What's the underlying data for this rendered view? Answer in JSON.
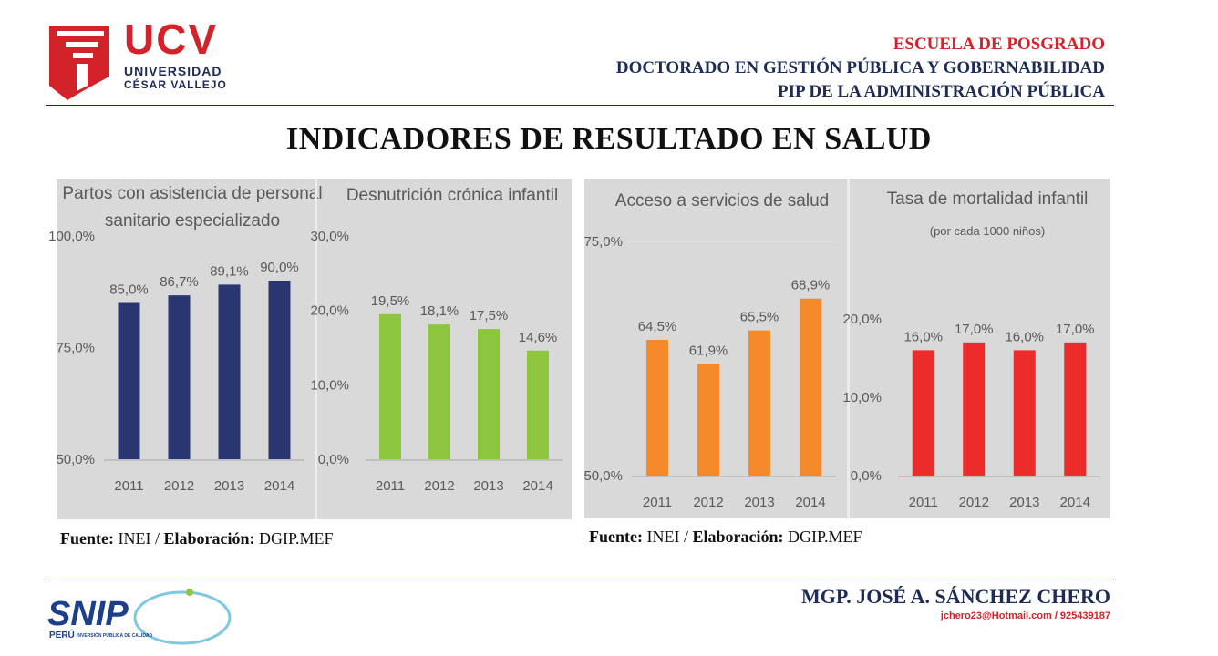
{
  "header": {
    "logo_main": "UCV",
    "logo_line1": "UNIVERSIDAD",
    "logo_line2": "CÉSAR VALLEJO",
    "line1": "ESCUELA DE POSGRADO",
    "line2": "DOCTORADO EN GESTIÓN PÚBLICA Y GOBERNABILIDAD",
    "line3": "PIP DE LA ADMINISTRACIÓN PÚBLICA"
  },
  "page_title": "INDICADORES DE RESULTADO EN SALUD",
  "sources": [
    {
      "label1": "Fuente:",
      "text1": " INEI / ",
      "label2": "Elaboración:",
      "text2": " DGIP.MEF"
    },
    {
      "label1": "Fuente:",
      "text1": " INEI / ",
      "label2": "Elaboración:",
      "text2": " DGIP.MEF"
    }
  ],
  "footer": {
    "author": "MGP. JOSÉ A. SÁNCHEZ CHERO",
    "contact": "jchero23@Hotmail.com / 925439187",
    "snip_logo": "SNIP",
    "snip_sub1": "PERÚ",
    "snip_sub2": "INVERSIÓN PÚBLICA DE CALIDAD"
  },
  "chart_data": [
    {
      "type": "bar",
      "title": [
        "Partos con asistencia de personal",
        "sanitario especializado"
      ],
      "categories": [
        "2011",
        "2012",
        "2013",
        "2014"
      ],
      "values": [
        85.0,
        86.7,
        89.1,
        90.0
      ],
      "value_labels": [
        "85,0%",
        "86,7%",
        "89,1%",
        "90,0%"
      ],
      "ylim": [
        50,
        100
      ],
      "yticks": [
        50,
        75,
        100
      ],
      "ytick_labels": [
        "50,0%",
        "75,0%",
        "100,0%"
      ],
      "color": "#2a3670"
    },
    {
      "type": "bar",
      "title": [
        "Desnutrición crónica infantil"
      ],
      "categories": [
        "2011",
        "2012",
        "2013",
        "2014"
      ],
      "values": [
        19.5,
        18.1,
        17.5,
        14.6
      ],
      "value_labels": [
        "19,5%",
        "18,1%",
        "17,5%",
        "14,6%"
      ],
      "ylim": [
        0,
        30
      ],
      "yticks": [
        0,
        10,
        20,
        30
      ],
      "ytick_labels": [
        "0,0%",
        "10,0%",
        "20,0%",
        "30,0%"
      ],
      "color": "#8cc63f"
    },
    {
      "type": "bar",
      "title": [
        "Acceso a servicios de salud"
      ],
      "categories": [
        "2011",
        "2012",
        "2013",
        "2014"
      ],
      "values": [
        64.5,
        61.9,
        65.5,
        68.9
      ],
      "value_labels": [
        "64,5%",
        "61,9%",
        "65,5%",
        "68,9%"
      ],
      "ylim": [
        50,
        75
      ],
      "yticks": [
        50,
        75
      ],
      "ytick_labels": [
        "50,0%",
        "75,0%"
      ],
      "color": "#f58a2a"
    },
    {
      "type": "bar",
      "title": [
        "Tasa de mortalidad infantil",
        "(por cada 1000 niños)"
      ],
      "categories": [
        "2011",
        "2012",
        "2013",
        "2014"
      ],
      "values": [
        16.0,
        17.0,
        16.0,
        17.0
      ],
      "value_labels": [
        "16,0%",
        "17,0%",
        "16,0%",
        "17,0%"
      ],
      "ylim": [
        0,
        20
      ],
      "yticks": [
        0,
        10,
        20
      ],
      "ytick_labels": [
        "0,0%",
        "10,0%",
        "20,0%"
      ],
      "color": "#ec2b2b"
    }
  ]
}
